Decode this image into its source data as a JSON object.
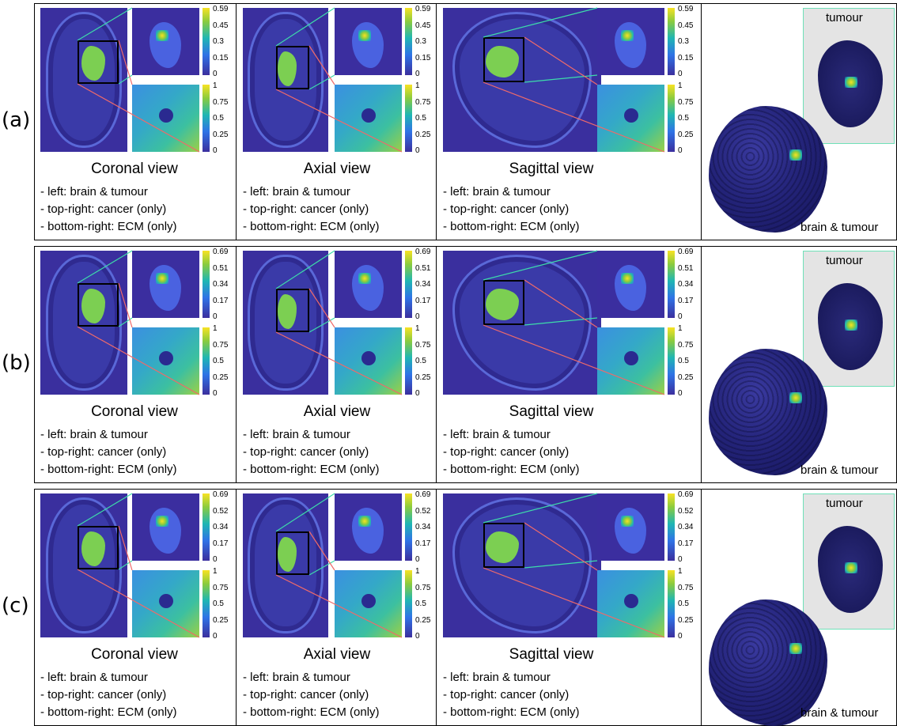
{
  "rows": [
    {
      "label": "(a)",
      "cancer_ticks": [
        "0.59",
        "0.45",
        "0.3",
        "0.15",
        "0"
      ],
      "ecm_ticks": [
        "1",
        "0.75",
        "0.5",
        "0.25",
        "0"
      ]
    },
    {
      "label": "(b)",
      "cancer_ticks": [
        "0.69",
        "0.51",
        "0.34",
        "0.17",
        "0"
      ],
      "ecm_ticks": [
        "1",
        "0.75",
        "0.5",
        "0.25",
        "0"
      ]
    },
    {
      "label": "(c)",
      "cancer_ticks": [
        "0.69",
        "0.52",
        "0.34",
        "0.17",
        "0"
      ],
      "ecm_ticks": [
        "1",
        "0.75",
        "0.5",
        "0.25",
        "0"
      ]
    }
  ],
  "views": [
    {
      "title": "Coronal view"
    },
    {
      "title": "Axial view"
    },
    {
      "title": "Sagittal view"
    }
  ],
  "descriptions": [
    "- left: brain & tumour",
    "- top-right: cancer (only)",
    "- bottom-right: ECM (only)"
  ],
  "labels_3d": {
    "tumour": "tumour",
    "brain": "brain & tumour"
  },
  "colors": {
    "zoom_line_cancer": "#3ddcaa",
    "zoom_line_ecm": "#f06a6a",
    "mri_background": "#3a2f9e"
  }
}
